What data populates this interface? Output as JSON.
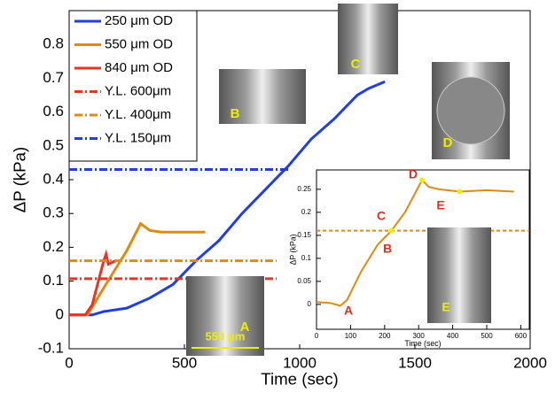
{
  "chart_data": [
    {
      "type": "line",
      "xlabel": "Time (sec)",
      "ylabel": "ΔP (kPa)",
      "xlim": [
        0,
        2000
      ],
      "ylim": [
        -0.1,
        0.9
      ],
      "xticks": [
        0,
        500,
        1000,
        1500,
        2000
      ],
      "yticks": [
        -0.1,
        0,
        0.1,
        0.2,
        0.3,
        0.4,
        0.5,
        0.6,
        0.7,
        0.8
      ],
      "legend": "upper left",
      "series": [
        {
          "name": "250 μm OD",
          "color": "#1f3fe0",
          "style": "solid",
          "x": [
            0,
            100,
            150,
            250,
            350,
            450,
            550,
            650,
            750,
            850,
            950,
            1050,
            1150,
            1250,
            1300,
            1370
          ],
          "values": [
            0,
            0,
            0.01,
            0.02,
            0.05,
            0.09,
            0.16,
            0.22,
            0.3,
            0.37,
            0.44,
            0.52,
            0.58,
            0.65,
            0.67,
            0.69
          ]
        },
        {
          "name": "550 μm OD",
          "color": "#e08a10",
          "style": "solid",
          "x": [
            0,
            80,
            150,
            250,
            310,
            350,
            400,
            590
          ],
          "values": [
            0,
            0,
            0.08,
            0.19,
            0.27,
            0.25,
            0.245,
            0.245
          ]
        },
        {
          "name": "840 μm OD",
          "color": "#f03020",
          "style": "solid",
          "x": [
            0,
            70,
            100,
            150,
            160,
            170,
            200
          ],
          "values": [
            0,
            0,
            0.03,
            0.16,
            0.18,
            0.15,
            0.16
          ]
        },
        {
          "name": "Y.L. 600μm",
          "color": "#f03020",
          "style": "dashdot",
          "x": [
            0,
            900
          ],
          "values": [
            0.107,
            0.107
          ]
        },
        {
          "name": "Y.L. 400μm",
          "color": "#e08a10",
          "style": "dashdot",
          "x": [
            0,
            900
          ],
          "values": [
            0.16,
            0.16
          ]
        },
        {
          "name": "Y.L. 150μm",
          "color": "#1f3fe0",
          "style": "dashdot",
          "x": [
            0,
            950
          ],
          "values": [
            0.43,
            0.43
          ]
        }
      ],
      "annotations": [
        "A",
        "B",
        "C",
        "D",
        "550 μm"
      ]
    },
    {
      "type": "line",
      "xlabel": "Time (sec)",
      "ylabel": "ΔP (kPa)",
      "xlim": [
        0,
        625
      ],
      "ylim": [
        -0.054,
        0.292
      ],
      "xticks": [
        0,
        100,
        200,
        300,
        400,
        500,
        600
      ],
      "yticks": [
        0,
        0.05,
        0.1,
        0.15,
        0.2,
        0.25
      ],
      "series": [
        {
          "name": null,
          "color": "#e08a10",
          "style": "solid",
          "x": [
            0,
            40,
            70,
            90,
            130,
            180,
            220,
            260,
            310,
            330,
            360,
            420,
            500,
            580
          ],
          "values": [
            0.005,
            0.003,
            -0.003,
            0.01,
            0.07,
            0.13,
            0.16,
            0.2,
            0.27,
            0.255,
            0.25,
            0.245,
            0.248,
            0.245
          ]
        },
        {
          "name": null,
          "color": "#e08a10",
          "style": "dashed",
          "x": [
            0,
            625
          ],
          "values": [
            0.16,
            0.16
          ]
        }
      ],
      "annotations": [
        "A",
        "B",
        "C",
        "D",
        "E",
        "E"
      ]
    }
  ]
}
